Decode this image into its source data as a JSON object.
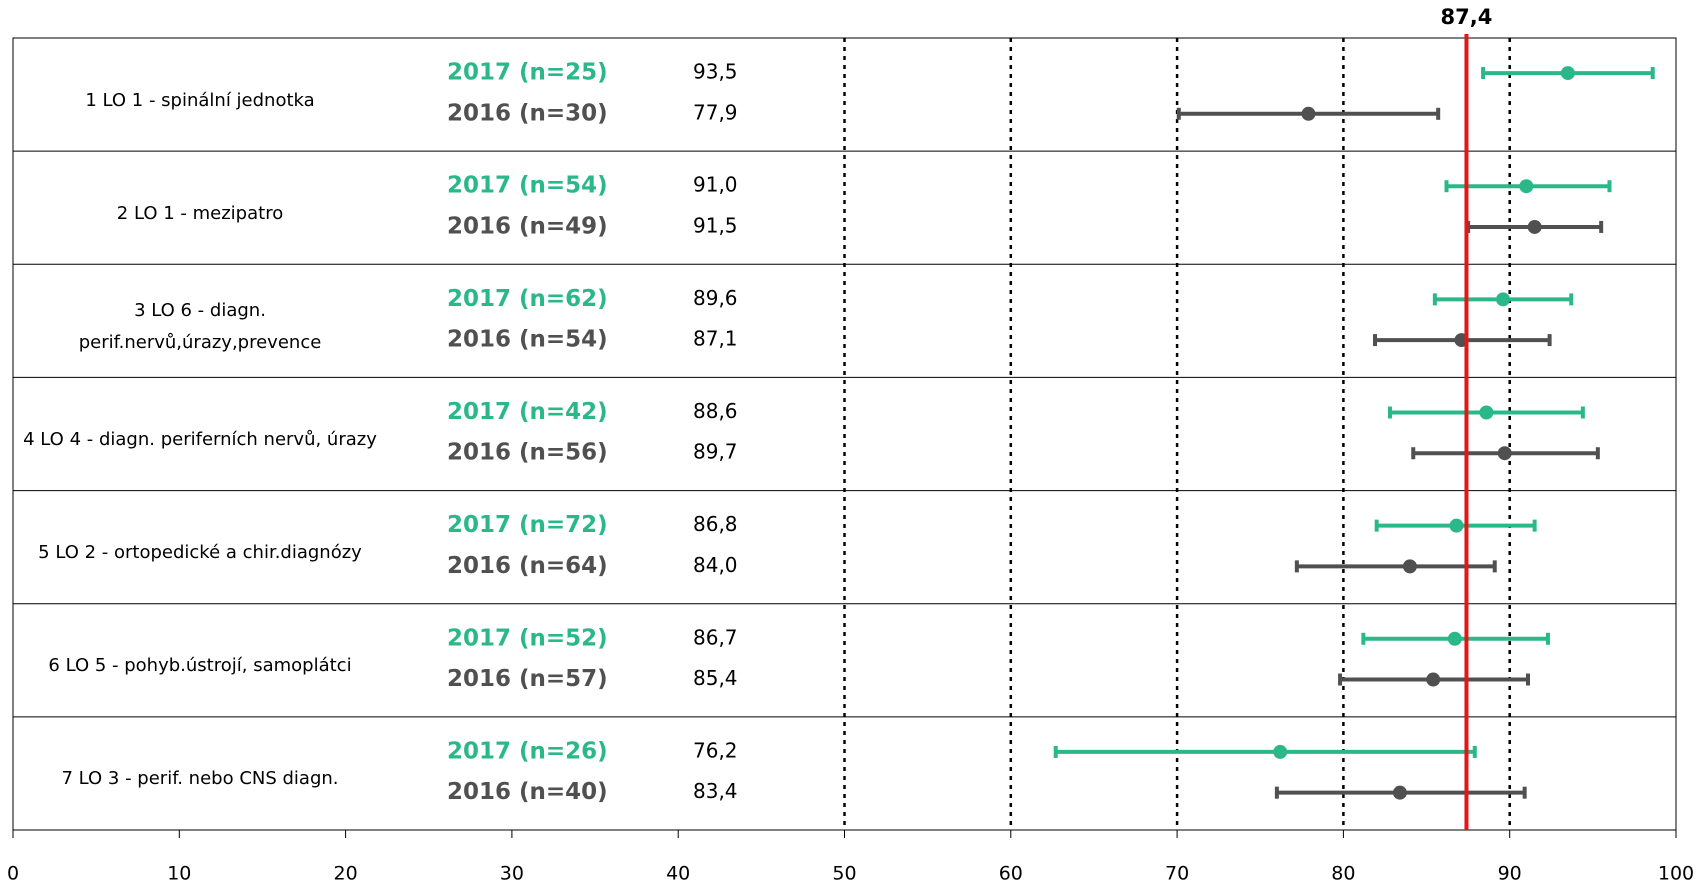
{
  "chart_data": {
    "type": "errorbar",
    "categories": [
      "1 LO 1 - spinální jednotka",
      "2 LO 1 - mezipatro",
      "3 LO 6 - diagn. perif.nervů,úrazy,prevence",
      "4 LO 4 - diagn. periferních nervů, úrazy",
      "5 LO 2 - ortopedické a chir.diagnózy",
      "6 LO 5 - pohyb.ústrojí, samoplátci",
      "7 LO 3 - perif. nebo CNS diagn."
    ],
    "series": [
      {
        "color": "#2bb889",
        "row_labels": [
          "2017 (n=25)",
          "2017 (n=54)",
          "2017 (n=62)",
          "2017 (n=42)",
          "2017 (n=72)",
          "2017 (n=52)",
          "2017 (n=26)"
        ],
        "values": [
          93.5,
          91.0,
          89.6,
          88.6,
          86.8,
          86.7,
          76.2
        ],
        "value_labels": [
          "93,5",
          "91,0",
          "89,6",
          "88,6",
          "86,8",
          "86,7",
          "76,2"
        ],
        "lower": [
          88.4,
          86.2,
          85.5,
          82.8,
          82.0,
          81.2,
          62.7
        ],
        "upper": [
          98.6,
          96.0,
          93.7,
          94.4,
          91.5,
          92.3,
          87.9
        ]
      },
      {
        "color": "#505050",
        "row_labels": [
          "2016 (n=30)",
          "2016 (n=49)",
          "2016 (n=54)",
          "2016 (n=56)",
          "2016 (n=64)",
          "2016 (n=57)",
          "2016 (n=40)"
        ],
        "values": [
          77.9,
          91.5,
          87.1,
          89.7,
          84.0,
          85.4,
          83.4
        ],
        "value_labels": [
          "77,9",
          "91,5",
          "87,1",
          "89,7",
          "84,0",
          "85,4",
          "83,4"
        ],
        "lower": [
          70.1,
          87.5,
          81.9,
          84.2,
          77.2,
          79.8,
          76.0
        ],
        "upper": [
          85.7,
          95.5,
          92.4,
          95.3,
          89.1,
          91.1,
          90.9
        ]
      }
    ],
    "xlim": [
      0,
      100
    ],
    "xticks": [
      0,
      10,
      20,
      30,
      40,
      50,
      60,
      70,
      80,
      90,
      100
    ],
    "grid_lines": [
      50,
      60,
      70,
      80,
      90
    ],
    "reference": {
      "value": 87.4,
      "label": "87,4",
      "color": "#e3161b"
    }
  }
}
